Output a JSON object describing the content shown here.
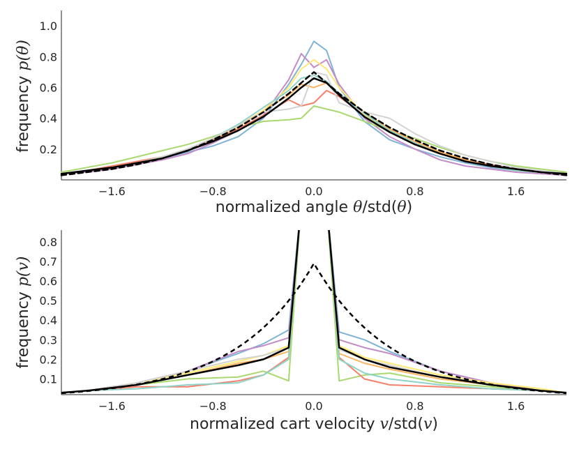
{
  "chart_data": [
    {
      "type": "line",
      "xlabel_text": "normalized angle ",
      "xlabel_math": "θ",
      "xlabel_rest": "/std(",
      "xlabel_math2": "θ",
      "xlabel_close": ")",
      "ylabel_text": "frequency ",
      "ylabel_math": "p(θ)",
      "xlim": [
        -2.0,
        2.0
      ],
      "ylim": [
        0.0,
        1.1
      ],
      "xticks": [
        -1.6,
        -0.8,
        0.0,
        0.8,
        1.6
      ],
      "xtick_labels": [
        "−1.6",
        "−0.8",
        "0.0",
        "0.8",
        "1.6"
      ],
      "yticks": [
        0.2,
        0.4,
        0.6,
        0.8,
        1.0
      ],
      "ytick_labels": [
        "0.2",
        "0.4",
        "0.6",
        "0.8",
        "1.0"
      ],
      "grid": false,
      "x": [
        -2.0,
        -1.8,
        -1.6,
        -1.4,
        -1.2,
        -1.0,
        -0.8,
        -0.6,
        -0.4,
        -0.2,
        -0.1,
        0.0,
        0.1,
        0.2,
        0.4,
        0.6,
        0.8,
        1.0,
        1.2,
        1.4,
        1.6,
        1.8,
        2.0
      ],
      "series": [
        {
          "color": "#7fb3d5",
          "values": [
            0.04,
            0.06,
            0.08,
            0.11,
            0.14,
            0.18,
            0.22,
            0.28,
            0.4,
            0.62,
            0.75,
            0.9,
            0.84,
            0.6,
            0.38,
            0.26,
            0.2,
            0.15,
            0.11,
            0.08,
            0.06,
            0.05,
            0.04
          ]
        },
        {
          "color": "#c38bc6",
          "values": [
            0.04,
            0.05,
            0.07,
            0.1,
            0.13,
            0.17,
            0.24,
            0.32,
            0.42,
            0.65,
            0.82,
            0.73,
            0.78,
            0.62,
            0.4,
            0.28,
            0.2,
            0.13,
            0.09,
            0.07,
            0.05,
            0.04,
            0.03
          ]
        },
        {
          "color": "#a8d86e",
          "values": [
            0.05,
            0.08,
            0.11,
            0.15,
            0.19,
            0.23,
            0.28,
            0.34,
            0.38,
            0.39,
            0.4,
            0.48,
            0.46,
            0.44,
            0.38,
            0.32,
            0.27,
            0.21,
            0.16,
            0.12,
            0.09,
            0.07,
            0.05
          ]
        },
        {
          "color": "#f4806b",
          "values": [
            0.04,
            0.06,
            0.09,
            0.12,
            0.15,
            0.2,
            0.26,
            0.33,
            0.42,
            0.52,
            0.48,
            0.5,
            0.58,
            0.54,
            0.42,
            0.32,
            0.25,
            0.18,
            0.13,
            0.1,
            0.07,
            0.05,
            0.04
          ]
        },
        {
          "color": "#fdb462",
          "values": [
            0.04,
            0.06,
            0.08,
            0.11,
            0.15,
            0.2,
            0.27,
            0.35,
            0.45,
            0.55,
            0.62,
            0.6,
            0.63,
            0.56,
            0.44,
            0.33,
            0.25,
            0.18,
            0.13,
            0.09,
            0.07,
            0.05,
            0.04
          ]
        },
        {
          "color": "#ffe873",
          "values": [
            0.04,
            0.06,
            0.08,
            0.11,
            0.15,
            0.2,
            0.27,
            0.34,
            0.45,
            0.6,
            0.72,
            0.78,
            0.72,
            0.6,
            0.42,
            0.31,
            0.23,
            0.17,
            0.12,
            0.09,
            0.06,
            0.05,
            0.04
          ]
        },
        {
          "color": "#8dd3c7",
          "values": [
            0.04,
            0.06,
            0.08,
            0.11,
            0.15,
            0.2,
            0.27,
            0.36,
            0.47,
            0.58,
            0.66,
            0.68,
            0.64,
            0.56,
            0.43,
            0.32,
            0.24,
            0.17,
            0.12,
            0.09,
            0.06,
            0.05,
            0.04
          ]
        },
        {
          "color": "#d3d3d3",
          "values": [
            0.04,
            0.06,
            0.08,
            0.11,
            0.15,
            0.2,
            0.27,
            0.35,
            0.44,
            0.46,
            0.48,
            0.7,
            0.68,
            0.5,
            0.44,
            0.4,
            0.3,
            0.22,
            0.16,
            0.12,
            0.08,
            0.06,
            0.04
          ]
        },
        {
          "color": "#000000",
          "width": 2.5,
          "values": [
            0.04,
            0.06,
            0.08,
            0.11,
            0.14,
            0.19,
            0.25,
            0.32,
            0.41,
            0.53,
            0.6,
            0.66,
            0.63,
            0.55,
            0.41,
            0.31,
            0.23,
            0.17,
            0.12,
            0.09,
            0.07,
            0.05,
            0.04
          ]
        },
        {
          "color": "#000000",
          "width": 2.5,
          "dash": "7,5",
          "values": [
            0.03,
            0.05,
            0.07,
            0.1,
            0.14,
            0.19,
            0.26,
            0.34,
            0.44,
            0.56,
            0.63,
            0.7,
            0.63,
            0.56,
            0.44,
            0.34,
            0.26,
            0.19,
            0.14,
            0.1,
            0.07,
            0.05,
            0.03
          ]
        }
      ]
    },
    {
      "type": "line",
      "xlabel_text": "normalized cart velocity ",
      "xlabel_math": "v",
      "xlabel_rest": "/std(",
      "xlabel_math2": "v",
      "xlabel_close": ")",
      "ylabel_text": "frequency ",
      "ylabel_math": "p(v)",
      "xlim": [
        -2.0,
        2.0
      ],
      "ylim": [
        0.02,
        0.86
      ],
      "xticks": [
        -1.6,
        -0.8,
        0.0,
        0.8,
        1.6
      ],
      "xtick_labels": [
        "−1.6",
        "−0.8",
        "0.0",
        "0.8",
        "1.6"
      ],
      "yticks": [
        0.1,
        0.2,
        0.3,
        0.4,
        0.5,
        0.6,
        0.7,
        0.8
      ],
      "ytick_labels": [
        "0.1",
        "0.2",
        "0.3",
        "0.4",
        "0.5",
        "0.6",
        "0.7",
        "0.8"
      ],
      "grid": false,
      "x": [
        -2.0,
        -1.8,
        -1.4,
        -1.0,
        -0.6,
        -0.4,
        -0.2,
        -0.1,
        0.1,
        0.2,
        0.4,
        0.6,
        1.0,
        1.4,
        1.8,
        2.0
      ],
      "series": [
        {
          "color": "#7fb3d5",
          "values": [
            0.03,
            0.04,
            0.08,
            0.14,
            0.23,
            0.28,
            0.35,
            1.0,
            1.0,
            0.34,
            0.3,
            0.24,
            0.14,
            0.08,
            0.04,
            0.03
          ]
        },
        {
          "color": "#c38bc6",
          "values": [
            0.03,
            0.04,
            0.08,
            0.14,
            0.24,
            0.27,
            0.31,
            1.0,
            1.0,
            0.3,
            0.26,
            0.23,
            0.14,
            0.08,
            0.04,
            0.03
          ]
        },
        {
          "color": "#a8d86e",
          "values": [
            0.03,
            0.04,
            0.07,
            0.1,
            0.11,
            0.14,
            0.09,
            1.0,
            1.0,
            0.09,
            0.12,
            0.13,
            0.08,
            0.06,
            0.04,
            0.03
          ]
        },
        {
          "color": "#f4806b",
          "values": [
            0.03,
            0.04,
            0.06,
            0.06,
            0.09,
            0.12,
            0.21,
            1.0,
            1.0,
            0.21,
            0.1,
            0.07,
            0.06,
            0.05,
            0.04,
            0.03
          ]
        },
        {
          "color": "#fdb462",
          "values": [
            0.03,
            0.04,
            0.07,
            0.12,
            0.18,
            0.2,
            0.24,
            1.0,
            1.0,
            0.23,
            0.18,
            0.15,
            0.1,
            0.07,
            0.04,
            0.03
          ]
        },
        {
          "color": "#ffe873",
          "values": [
            0.03,
            0.04,
            0.08,
            0.13,
            0.19,
            0.22,
            0.27,
            1.0,
            1.0,
            0.27,
            0.21,
            0.18,
            0.12,
            0.08,
            0.05,
            0.03
          ]
        },
        {
          "color": "#8dd3c7",
          "values": [
            0.03,
            0.04,
            0.05,
            0.07,
            0.08,
            0.12,
            0.2,
            1.0,
            1.0,
            0.2,
            0.13,
            0.1,
            0.07,
            0.05,
            0.04,
            0.03
          ]
        },
        {
          "color": "#d3d3d3",
          "values": [
            0.03,
            0.04,
            0.08,
            0.14,
            0.2,
            0.22,
            0.26,
            1.0,
            1.0,
            0.25,
            0.2,
            0.17,
            0.11,
            0.07,
            0.04,
            0.03
          ]
        },
        {
          "color": "#000000",
          "width": 2.5,
          "values": [
            0.03,
            0.04,
            0.07,
            0.12,
            0.17,
            0.2,
            0.26,
            1.0,
            1.0,
            0.26,
            0.2,
            0.16,
            0.11,
            0.07,
            0.04,
            0.03
          ]
        }
      ],
      "dashed_curve": {
        "color": "#000000",
        "width": 2.5,
        "dash": "7,5",
        "peak": 0.69,
        "scale": 0.62
      }
    }
  ]
}
